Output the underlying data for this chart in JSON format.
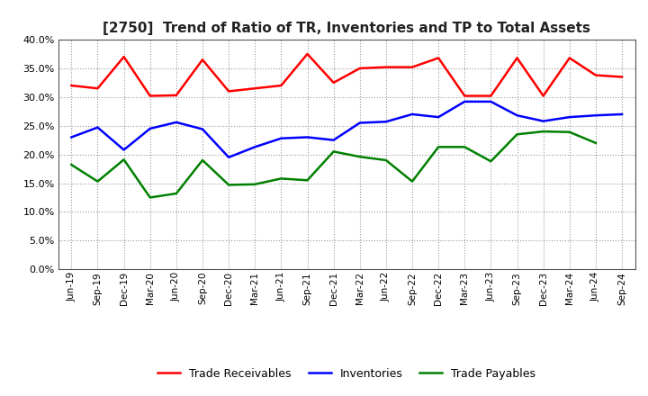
{
  "title": "[2750]  Trend of Ratio of TR, Inventories and TP to Total Assets",
  "x_labels": [
    "Jun-19",
    "Sep-19",
    "Dec-19",
    "Mar-20",
    "Jun-20",
    "Sep-20",
    "Dec-20",
    "Mar-21",
    "Jun-21",
    "Sep-21",
    "Dec-21",
    "Mar-22",
    "Jun-22",
    "Sep-22",
    "Dec-22",
    "Mar-23",
    "Jun-23",
    "Sep-23",
    "Dec-23",
    "Mar-24",
    "Jun-24",
    "Sep-24"
  ],
  "trade_receivables": [
    0.32,
    0.315,
    0.37,
    0.302,
    0.303,
    0.365,
    0.31,
    0.315,
    0.32,
    0.375,
    0.325,
    0.35,
    0.352,
    0.352,
    0.368,
    0.302,
    0.302,
    0.368,
    0.302,
    0.368,
    0.338,
    0.335
  ],
  "inventories": [
    0.23,
    0.247,
    0.208,
    0.245,
    0.256,
    0.244,
    0.195,
    0.213,
    0.228,
    0.23,
    0.225,
    0.255,
    0.257,
    0.27,
    0.265,
    0.292,
    0.292,
    0.268,
    0.258,
    0.265,
    0.268,
    0.27
  ],
  "trade_payables": [
    0.182,
    0.153,
    0.191,
    0.125,
    0.132,
    0.19,
    0.147,
    0.148,
    0.158,
    0.155,
    0.205,
    0.196,
    0.19,
    0.153,
    0.213,
    0.213,
    0.188,
    0.235,
    0.24,
    0.239,
    0.22,
    null
  ],
  "tr_color": "#FF0000",
  "inv_color": "#0000FF",
  "tp_color": "#008000",
  "background_color": "#FFFFFF",
  "plot_bg_color": "#FFFFFF",
  "ylim": [
    0.0,
    0.4
  ],
  "yticks": [
    0.0,
    0.05,
    0.1,
    0.15,
    0.2,
    0.25,
    0.3,
    0.35,
    0.4
  ],
  "legend_labels": [
    "Trade Receivables",
    "Inventories",
    "Trade Payables"
  ],
  "grid_color": "#999999",
  "line_width": 1.8
}
